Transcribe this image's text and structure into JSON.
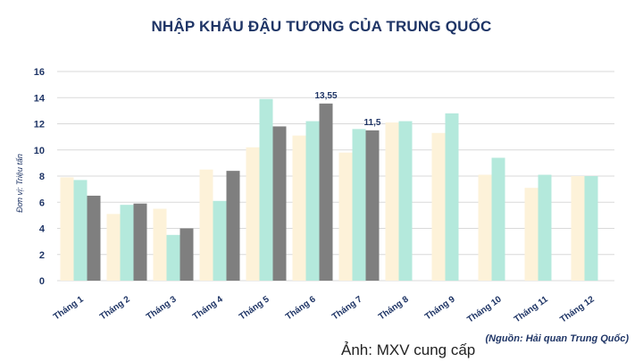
{
  "chart_data": {
    "type": "bar",
    "title": "NHẬP KHẨU ĐẬU TƯƠNG CỦA TRUNG QUỐC",
    "ylabel": "Đơn vị: Triệu tấn",
    "xlabel": "",
    "ylim": [
      0,
      16
    ],
    "yticks": [
      0,
      2,
      4,
      6,
      8,
      10,
      12,
      14,
      16
    ],
    "grid": true,
    "categories": [
      "Tháng 1",
      "Tháng 2",
      "Tháng 3",
      "Tháng 4",
      "Tháng 5",
      "Tháng 6",
      "Tháng 7",
      "Tháng 8",
      "Tháng 9",
      "Tháng 10",
      "Tháng 11",
      "Tháng 12"
    ],
    "series": [
      {
        "color": "#fdf2d9",
        "values": [
          7.9,
          5.1,
          5.5,
          8.5,
          10.2,
          11.1,
          9.8,
          12.1,
          11.3,
          8.1,
          7.1,
          8.0
        ]
      },
      {
        "color": "#b4e9dc",
        "values": [
          7.7,
          5.8,
          3.5,
          6.1,
          13.9,
          12.2,
          11.6,
          12.2,
          12.8,
          9.4,
          8.1,
          8.0
        ]
      },
      {
        "color": "#7f7f7f",
        "values": [
          6.5,
          5.9,
          4.0,
          8.4,
          11.8,
          13.55,
          11.5,
          null,
          null,
          null,
          null,
          null
        ]
      }
    ],
    "annotations": [
      {
        "category": "Tháng 6",
        "series_index": 2,
        "text": "13,55"
      },
      {
        "category": "Tháng 7",
        "series_index": 2,
        "text": "11,5"
      }
    ]
  },
  "source_note": "(Nguồn: Hải quan Trung Quốc)",
  "image_credit": "Ảnh: MXV cung cấp"
}
